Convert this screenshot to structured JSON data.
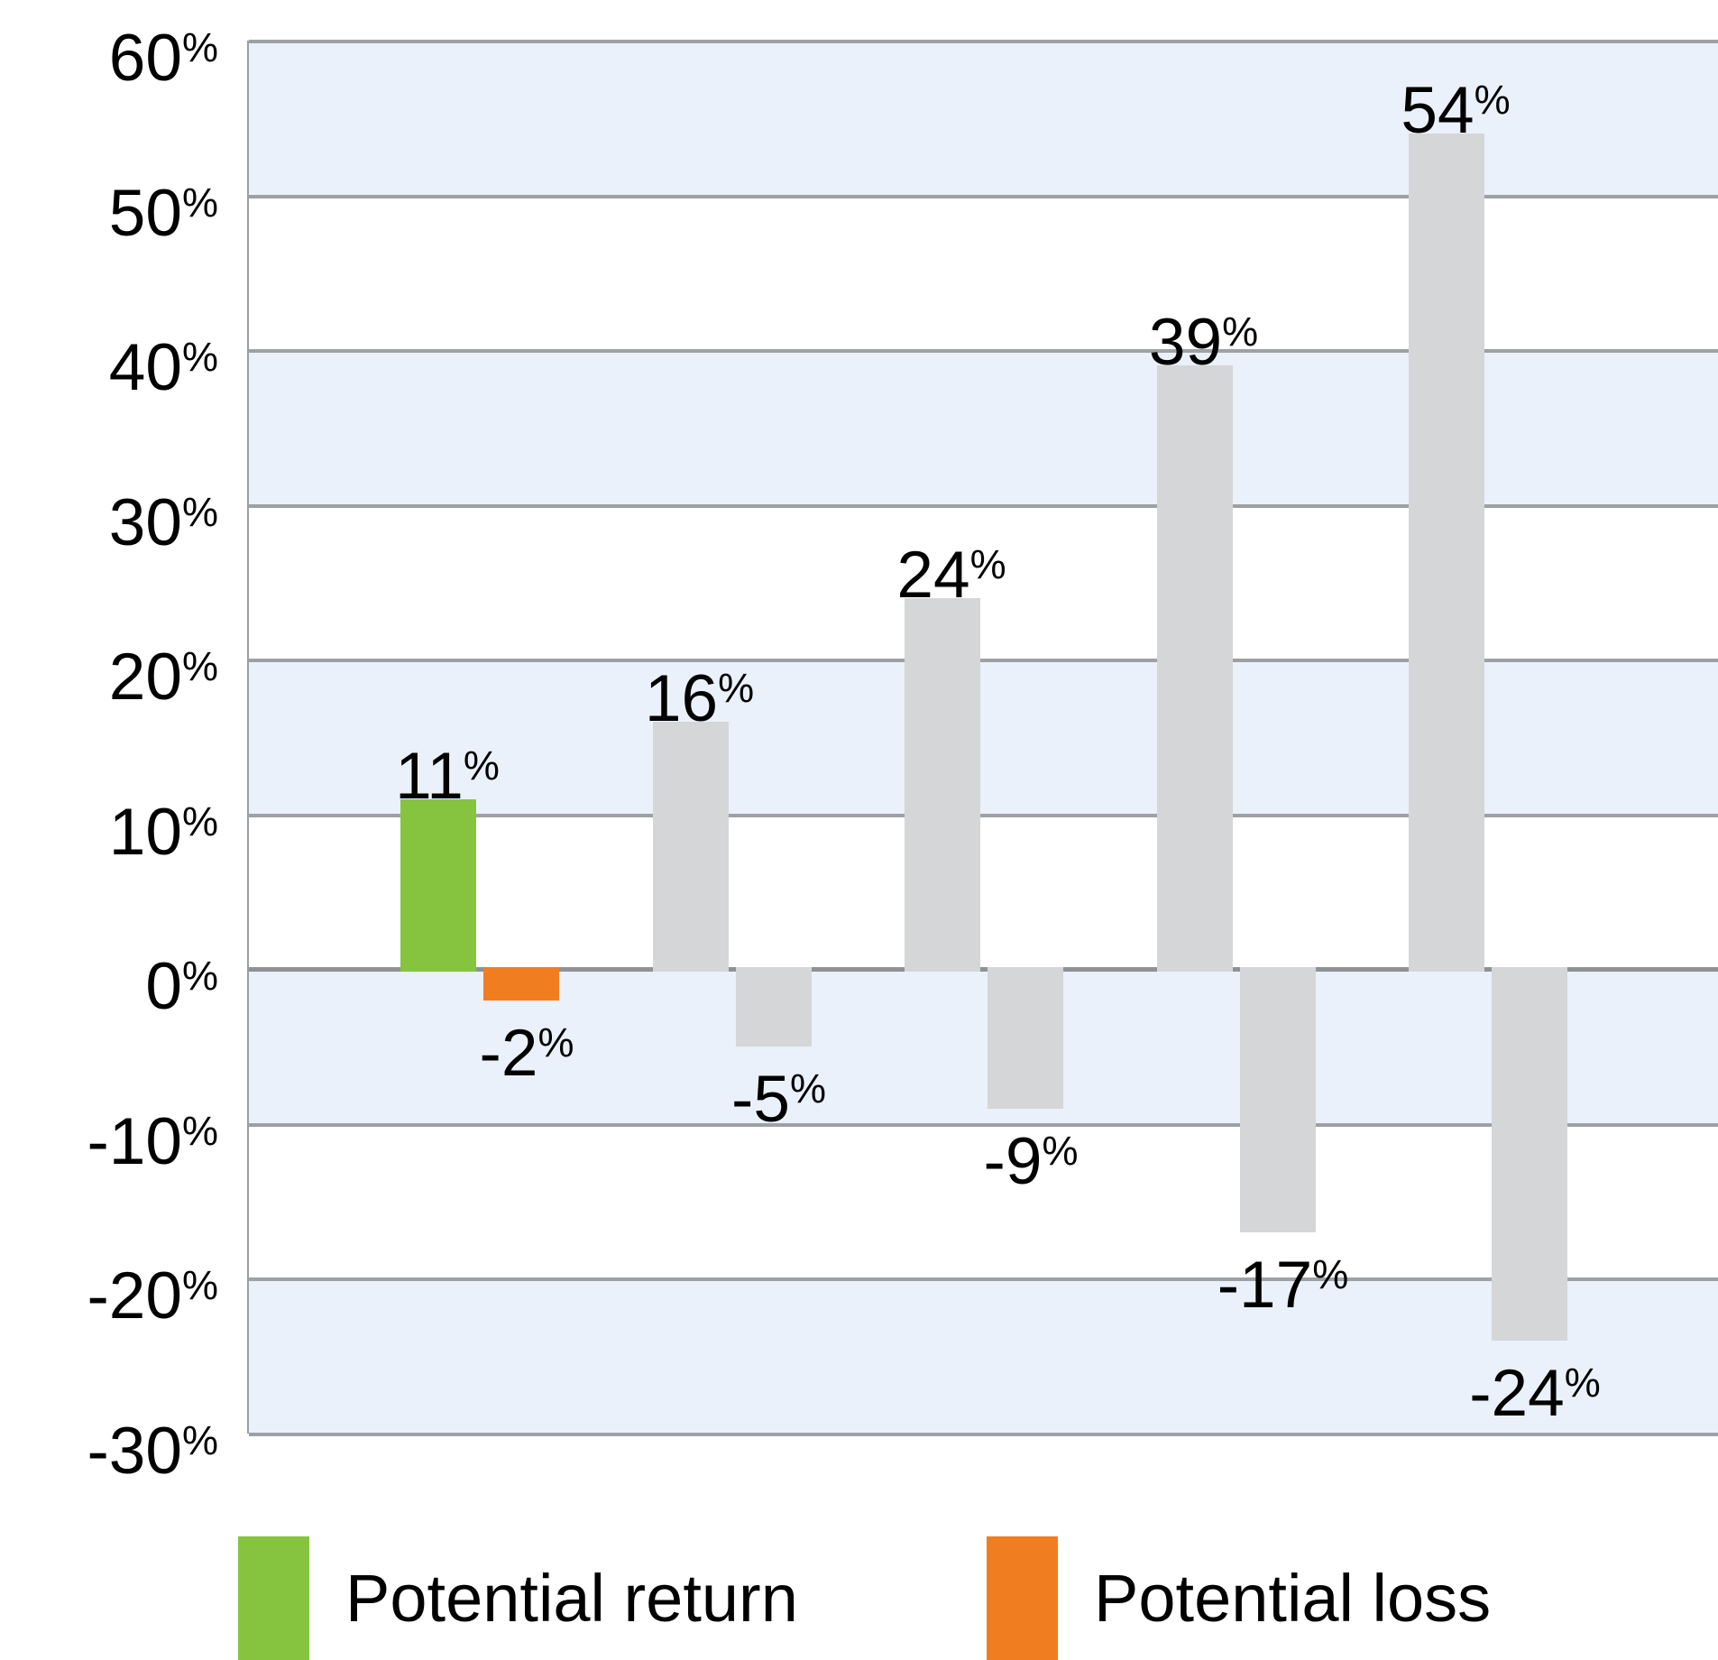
{
  "chart_data": {
    "type": "bar",
    "title": "",
    "xlabel": "",
    "ylabel": "",
    "ylim": [
      -30,
      60
    ],
    "ytick_step": 10,
    "yticks": [
      60,
      50,
      40,
      30,
      20,
      10,
      0,
      -10,
      -20,
      -30
    ],
    "tick_suffix": "%",
    "value_label_suffix": "%",
    "grid": true,
    "legend_position": "bottom",
    "series": [
      {
        "name": "Potential return",
        "values": [
          11,
          16,
          24,
          39,
          54
        ]
      },
      {
        "name": "Potential loss",
        "values": [
          -2,
          -5,
          -9,
          -17,
          -24
        ]
      }
    ],
    "highlighted_pair": 0,
    "colors": {
      "return": "#86C440",
      "loss": "#F07E20",
      "muted_bar": "#D5D6D8",
      "stripe_band": "#EBF1FA",
      "plain_band": "#FFFFFF",
      "gridline": "#9EA1A4",
      "zero_line": "#8F9294",
      "axis_line": "#9AA0A6",
      "text": "#000000"
    }
  },
  "legend": {
    "items": [
      {
        "label": "Potential return",
        "color": "#86C440"
      },
      {
        "label": "Potential loss",
        "color": "#F07E20"
      }
    ]
  }
}
